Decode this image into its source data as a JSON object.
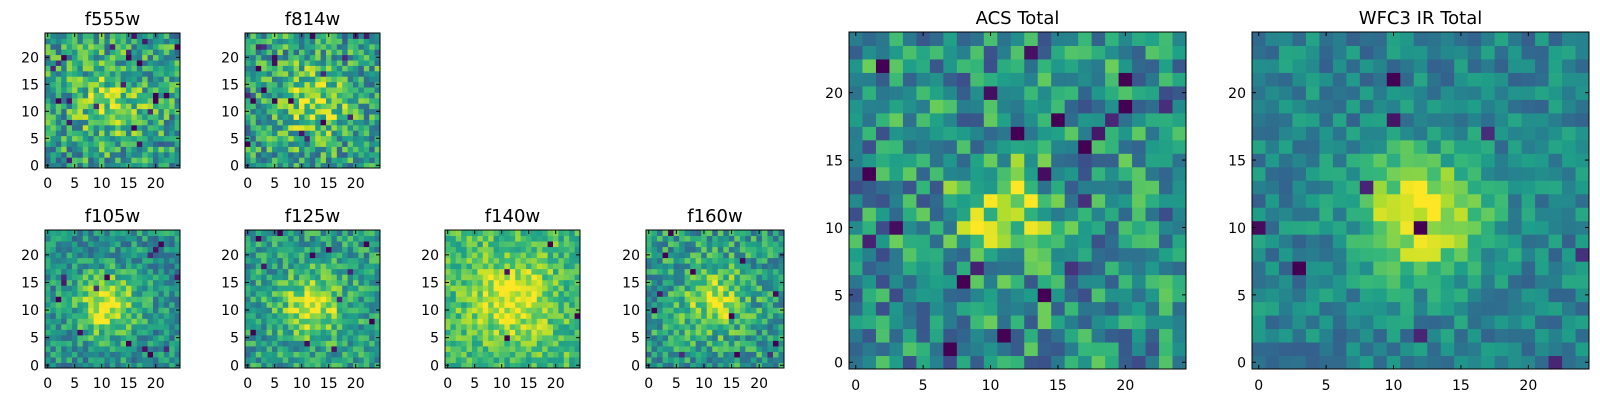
{
  "chart_data": [
    {
      "type": "heatmap",
      "title": "f555w",
      "xlim": [
        -0.5,
        24.5
      ],
      "ylim": [
        -0.5,
        24.5
      ],
      "xticks": [
        0,
        5,
        10,
        15,
        20
      ],
      "yticks": [
        0,
        5,
        10,
        15,
        20
      ],
      "xticklabels": [
        "0",
        "5",
        "10",
        "15",
        "20"
      ],
      "yticklabels": [
        "0",
        "5",
        "10",
        "15",
        "20"
      ],
      "grid_size": 25,
      "colormap": "viridis",
      "pixel_style": "noisy map, faint central concentration, scattered dark outliers",
      "seed": 11,
      "peak": [
        12,
        12
      ],
      "sigma": 5,
      "peak_strength": 0.25,
      "noise": 0.55,
      "base": 0.55,
      "outliers": 22
    },
    {
      "type": "heatmap",
      "title": "f814w",
      "xlim": [
        -0.5,
        24.5
      ],
      "ylim": [
        -0.5,
        24.5
      ],
      "xticks": [
        0,
        5,
        10,
        15,
        20
      ],
      "yticks": [
        0,
        5,
        10,
        15,
        20
      ],
      "xticklabels": [
        "0",
        "5",
        "10",
        "15",
        "20"
      ],
      "yticklabels": [
        "0",
        "5",
        "10",
        "15",
        "20"
      ],
      "grid_size": 25,
      "colormap": "viridis",
      "pixel_style": "noisy map, faint central concentration, scattered dark outliers",
      "seed": 23,
      "peak": [
        12,
        12
      ],
      "sigma": 5,
      "peak_strength": 0.3,
      "noise": 0.55,
      "base": 0.55,
      "outliers": 20
    },
    {
      "type": "heatmap",
      "title": "f105w",
      "xlim": [
        -0.5,
        24.5
      ],
      "ylim": [
        -0.5,
        24.5
      ],
      "xticks": [
        0,
        5,
        10,
        15,
        20
      ],
      "yticks": [
        0,
        5,
        10,
        15,
        20
      ],
      "xticklabels": [
        "0",
        "5",
        "10",
        "15",
        "20"
      ],
      "yticklabels": [
        "0",
        "5",
        "10",
        "15",
        "20"
      ],
      "grid_size": 25,
      "colormap": "viridis",
      "pixel_style": "smoother map, bright central source near x=11 y=11",
      "seed": 37,
      "peak": [
        11,
        11
      ],
      "sigma": 4,
      "peak_strength": 0.45,
      "noise": 0.4,
      "base": 0.5,
      "outliers": 14
    },
    {
      "type": "heatmap",
      "title": "f125w",
      "xlim": [
        -0.5,
        24.5
      ],
      "ylim": [
        -0.5,
        24.5
      ],
      "xticks": [
        0,
        5,
        10,
        15,
        20
      ],
      "yticks": [
        0,
        5,
        10,
        15,
        20
      ],
      "xticklabels": [
        "0",
        "5",
        "10",
        "15",
        "20"
      ],
      "yticklabels": [
        "0",
        "5",
        "10",
        "15",
        "20"
      ],
      "grid_size": 25,
      "colormap": "viridis",
      "pixel_style": "smoother map, bright central source",
      "seed": 41,
      "peak": [
        12,
        11
      ],
      "sigma": 4,
      "peak_strength": 0.4,
      "noise": 0.42,
      "base": 0.55,
      "outliers": 12
    },
    {
      "type": "heatmap",
      "title": "f140w",
      "xlim": [
        -0.5,
        24.5
      ],
      "ylim": [
        -0.5,
        24.5
      ],
      "xticks": [
        0,
        5,
        10,
        15,
        20
      ],
      "yticks": [
        0,
        5,
        10,
        15,
        20
      ],
      "xticklabels": [
        "0",
        "5",
        "10",
        "15",
        "20"
      ],
      "yticklabels": [
        "0",
        "5",
        "10",
        "15",
        "20"
      ],
      "grid_size": 25,
      "colormap": "viridis",
      "pixel_style": "bright overall, few dark pixels",
      "seed": 53,
      "peak": [
        12,
        12
      ],
      "sigma": 5,
      "peak_strength": 0.3,
      "noise": 0.35,
      "base": 0.68,
      "outliers": 4
    },
    {
      "type": "heatmap",
      "title": "f160w",
      "xlim": [
        -0.5,
        24.5
      ],
      "ylim": [
        -0.5,
        24.5
      ],
      "xticks": [
        0,
        5,
        10,
        15,
        20
      ],
      "yticks": [
        0,
        5,
        10,
        15,
        20
      ],
      "xticklabels": [
        "0",
        "5",
        "10",
        "15",
        "20"
      ],
      "yticklabels": [
        "0",
        "5",
        "10",
        "15",
        "20"
      ],
      "grid_size": 25,
      "colormap": "viridis",
      "pixel_style": "mixed map, dark clumps at right",
      "seed": 67,
      "peak": [
        12,
        12
      ],
      "sigma": 4,
      "peak_strength": 0.35,
      "noise": 0.45,
      "base": 0.55,
      "outliers": 12
    },
    {
      "type": "heatmap",
      "title": "ACS Total",
      "xlim": [
        -0.5,
        24.5
      ],
      "ylim": [
        -0.5,
        24.5
      ],
      "xticks": [
        0,
        5,
        10,
        15,
        20
      ],
      "yticks": [
        0,
        5,
        10,
        15,
        20
      ],
      "xticklabels": [
        "0",
        "5",
        "10",
        "15",
        "20"
      ],
      "yticklabels": [
        "0",
        "5",
        "10",
        "15",
        "20"
      ],
      "grid_size": 25,
      "colormap": "viridis",
      "pixel_style": "noisy map, bright patch near x=11 y=11, dark outliers",
      "seed": 79,
      "peak": [
        11,
        11
      ],
      "sigma": 2.5,
      "peak_strength": 0.4,
      "noise": 0.55,
      "base": 0.5,
      "outliers": 22
    },
    {
      "type": "heatmap",
      "title": "WFC3 IR Total",
      "xlim": [
        -0.5,
        24.5
      ],
      "ylim": [
        -0.5,
        24.5
      ],
      "xticks": [
        0,
        5,
        10,
        15,
        20
      ],
      "yticks": [
        0,
        5,
        10,
        15,
        20
      ],
      "xticklabels": [
        "0",
        "5",
        "10",
        "15",
        "20"
      ],
      "yticklabels": [
        "0",
        "5",
        "10",
        "15",
        "20"
      ],
      "grid_size": 25,
      "colormap": "viridis",
      "pixel_style": "smoother map, strong bright source around x=12 y=11",
      "seed": 97,
      "peak": [
        12,
        11
      ],
      "sigma": 3.2,
      "peak_strength": 0.55,
      "noise": 0.3,
      "base": 0.45,
      "outliers": 10
    }
  ]
}
